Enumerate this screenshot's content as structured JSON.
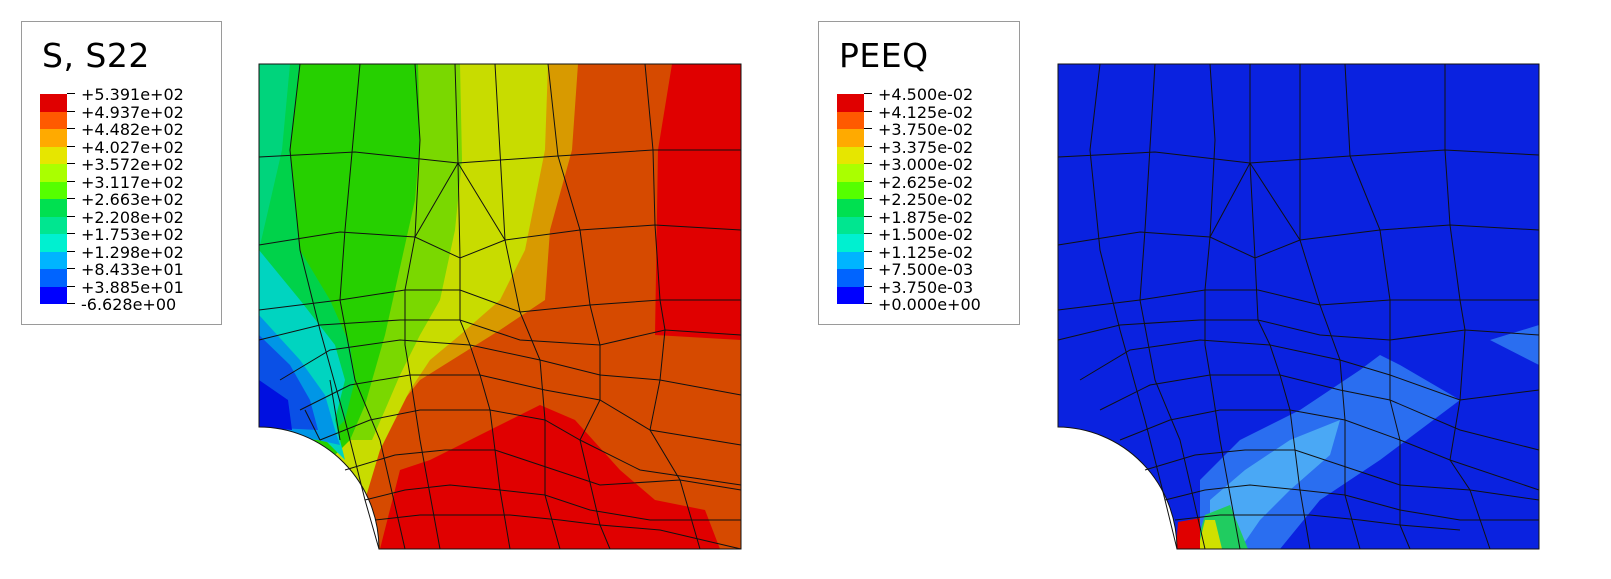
{
  "left_plot": {
    "legend": {
      "title": "S, S22",
      "values": [
        "+5.391e+02",
        "+4.937e+02",
        "+4.482e+02",
        "+4.027e+02",
        "+3.572e+02",
        "+3.117e+02",
        "+2.663e+02",
        "+2.208e+02",
        "+1.753e+02",
        "+1.298e+02",
        "+8.433e+01",
        "+3.885e+01",
        "-6.628e+00"
      ]
    }
  },
  "right_plot": {
    "legend": {
      "title": "PEEQ",
      "values": [
        "+4.500e-02",
        "+4.125e-02",
        "+3.750e-02",
        "+3.375e-02",
        "+3.000e-02",
        "+2.625e-02",
        "+2.250e-02",
        "+1.875e-02",
        "+1.500e-02",
        "+1.125e-02",
        "+7.500e-03",
        "+3.750e-03",
        "+0.000e+00"
      ]
    }
  },
  "colors": {
    "scale": [
      "#e00000",
      "#ff5a00",
      "#ffaa00",
      "#e6e600",
      "#aaff00",
      "#55ff00",
      "#00e050",
      "#00e690",
      "#00f0d0",
      "#00b4ff",
      "#0064ff",
      "#0000ff"
    ],
    "left_map": {
      "red": "#e00000",
      "dark_orange": "#d64a00",
      "orange": "#d89a00",
      "yellow": "#c8dc00",
      "lime": "#7ad800",
      "green": "#26d000",
      "green2": "#00d24a",
      "seafoam": "#00d47c",
      "teal": "#00d4c0",
      "sky": "#0096e6",
      "blue": "#0a50e6",
      "dark_blue": "#0010e0"
    },
    "right_map": {
      "base": "#0a22e0",
      "mid": "#2a6ef0",
      "light": "#4aa8f5",
      "green": "#20cc60",
      "yellow": "#d0e000",
      "red": "#e00000"
    }
  }
}
